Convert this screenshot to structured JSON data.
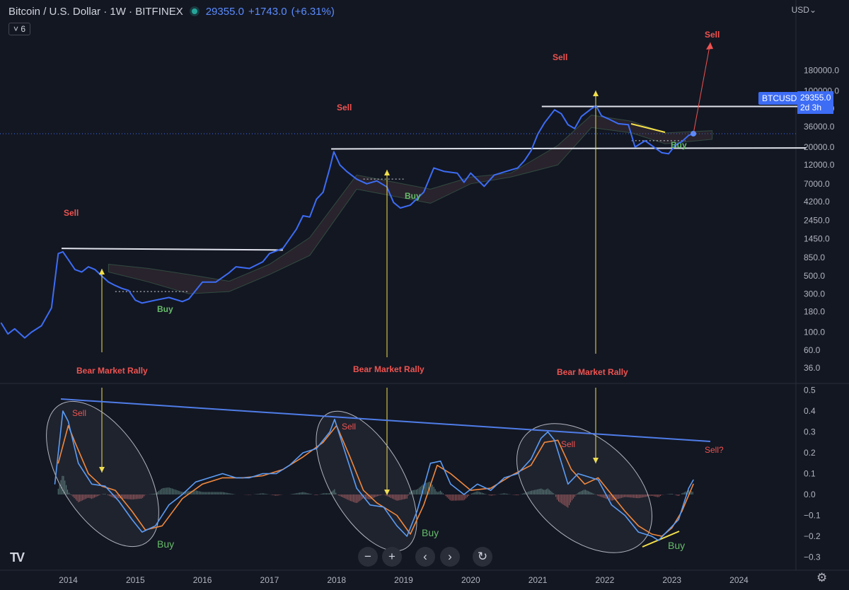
{
  "header": {
    "symbol": "Bitcoin / U.S. Dollar · 1W · BITFINEX",
    "last": "29355.0",
    "change": "+1743.0",
    "change_pct": "(+6.31%)",
    "indicator_count": "6",
    "currency": "USD",
    "currency_caret": "⌄"
  },
  "price_tag": {
    "symbol": "BTCUSD",
    "price": "29355.0",
    "countdown": "2d 3h"
  },
  "colors": {
    "price": "#3d6cf5",
    "macd": "#5b9cf5",
    "signal": "#f0883e",
    "sell": "#ef5350",
    "buy": "#66bb6a",
    "rally": "#ef5350",
    "arrow": "#f3e04a",
    "white_line": "#e0e3eb",
    "trend": "#4f7de8"
  },
  "chart_data": [
    {
      "type": "line",
      "scale": "log",
      "y_ticks": [
        36,
        60,
        100,
        180,
        300,
        500,
        850,
        1450,
        2450,
        4200,
        7000,
        12000,
        20000,
        36000,
        60000,
        100000,
        180000
      ],
      "y_tick_labels": [
        "36.0",
        "60.0",
        "100.0",
        "180.0",
        "300.0",
        "500.0",
        "850.0",
        "1450.0",
        "2450.0",
        "4200.0",
        "7000.0",
        "12000.0",
        "20000.0",
        "36000.0",
        "60000.0",
        "100000.0",
        "180000.0"
      ],
      "x_ticks": [
        2014,
        2015,
        2016,
        2017,
        2018,
        2019,
        2020,
        2021,
        2022,
        2023,
        2024
      ],
      "x_tick_labels": [
        "2014",
        "2015",
        "2016",
        "2017",
        "2018",
        "2019",
        "2020",
        "2021",
        "2022",
        "2023",
        "2024"
      ],
      "series": [
        {
          "x": [
            2013.0,
            2013.1,
            2013.2,
            2013.35,
            2013.45,
            2013.6,
            2013.75,
            2013.85,
            2013.92,
            2014.0,
            2014.1,
            2014.2,
            2014.3,
            2014.4,
            2014.5,
            2014.6,
            2014.7,
            2014.8,
            2014.9,
            2015.0,
            2015.1,
            2015.3,
            2015.5,
            2015.7,
            2015.8,
            2016.0,
            2016.2,
            2016.4,
            2016.5,
            2016.7,
            2016.9,
            2017.0,
            2017.2,
            2017.4,
            2017.5,
            2017.6,
            2017.7,
            2017.8,
            2017.9,
            2017.96,
            2018.05,
            2018.15,
            2018.3,
            2018.45,
            2018.6,
            2018.75,
            2018.85,
            2018.95,
            2019.1,
            2019.3,
            2019.45,
            2019.6,
            2019.8,
            2019.9,
            2020.0,
            2020.2,
            2020.35,
            2020.5,
            2020.7,
            2020.8,
            2020.9,
            2021.0,
            2021.1,
            2021.25,
            2021.35,
            2021.45,
            2021.55,
            2021.65,
            2021.8,
            2021.87,
            2021.95,
            2022.05,
            2022.2,
            2022.35,
            2022.45,
            2022.6,
            2022.75,
            2022.85,
            2022.95,
            2023.05,
            2023.15,
            2023.25,
            2023.32
          ],
          "y": [
            130,
            95,
            110,
            85,
            100,
            120,
            200,
            950,
            1000,
            800,
            600,
            560,
            650,
            600,
            500,
            420,
            380,
            350,
            330,
            250,
            230,
            250,
            270,
            240,
            260,
            420,
            420,
            550,
            650,
            620,
            750,
            950,
            1100,
            1900,
            2800,
            2700,
            4500,
            5500,
            11000,
            17500,
            12000,
            10000,
            8000,
            7000,
            7600,
            6400,
            4100,
            3500,
            3800,
            5500,
            11000,
            10000,
            9500,
            7300,
            9500,
            6500,
            9000,
            9800,
            11000,
            13500,
            18000,
            29000,
            40000,
            58000,
            52000,
            38000,
            34000,
            48000,
            60000,
            65000,
            49000,
            45000,
            39000,
            38000,
            20000,
            24000,
            19500,
            17000,
            16500,
            21000,
            23500,
            28000,
            29355
          ]
        }
      ],
      "annotations": {
        "sell": "Sell",
        "buy": "Buy",
        "rally": "Bear Market Rally"
      }
    },
    {
      "type": "line",
      "name": "oscillator",
      "y_ticks": [
        0.5,
        0.4,
        0.3,
        0.2,
        0.1,
        0.0,
        -0.1,
        -0.2,
        -0.3
      ],
      "y_tick_labels": [
        "0.5",
        "0.4",
        "0.3",
        "0.2",
        "0.1",
        "0.0",
        "−0.1",
        "−0.2",
        "−0.3"
      ],
      "series": [
        {
          "x": [
            2013.8,
            2013.92,
            2014.0,
            2014.15,
            2014.35,
            2014.55,
            2014.75,
            2014.95,
            2015.1,
            2015.3,
            2015.5,
            2015.7,
            2015.9,
            2016.1,
            2016.3,
            2016.5,
            2016.7,
            2016.9,
            2017.1,
            2017.3,
            2017.5,
            2017.7,
            2017.9,
            2017.97,
            2018.1,
            2018.3,
            2018.5,
            2018.7,
            2018.9,
            2019.05,
            2019.2,
            2019.4,
            2019.55,
            2019.7,
            2019.9,
            2020.1,
            2020.3,
            2020.5,
            2020.7,
            2020.9,
            2021.05,
            2021.15,
            2021.25,
            2021.45,
            2021.6,
            2021.8,
            2021.9,
            2022.1,
            2022.3,
            2022.5,
            2022.7,
            2022.8,
            2022.95,
            2023.1,
            2023.25,
            2023.32
          ],
          "y": [
            0.05,
            0.4,
            0.35,
            0.15,
            0.05,
            0.04,
            -0.03,
            -0.12,
            -0.18,
            -0.15,
            -0.05,
            0.0,
            0.06,
            0.08,
            0.1,
            0.08,
            0.08,
            0.1,
            0.1,
            0.14,
            0.2,
            0.22,
            0.3,
            0.36,
            0.23,
            0.03,
            -0.05,
            -0.06,
            -0.15,
            -0.2,
            -0.08,
            0.15,
            0.16,
            0.05,
            0.0,
            0.05,
            0.02,
            0.08,
            0.1,
            0.17,
            0.27,
            0.3,
            0.26,
            0.05,
            0.1,
            0.08,
            0.07,
            -0.05,
            -0.1,
            -0.18,
            -0.2,
            -0.22,
            -0.17,
            -0.12,
            0.03,
            0.07
          ]
        },
        {
          "x": [
            2013.85,
            2014.0,
            2014.1,
            2014.3,
            2014.5,
            2014.7,
            2014.95,
            2015.15,
            2015.4,
            2015.7,
            2016.0,
            2016.3,
            2016.6,
            2016.9,
            2017.2,
            2017.5,
            2017.8,
            2018.0,
            2018.2,
            2018.4,
            2018.6,
            2018.9,
            2019.1,
            2019.3,
            2019.5,
            2019.7,
            2020.0,
            2020.3,
            2020.6,
            2020.9,
            2021.1,
            2021.3,
            2021.5,
            2021.7,
            2021.9,
            2022.1,
            2022.3,
            2022.5,
            2022.7,
            2022.85,
            2023.0,
            2023.15,
            2023.32
          ],
          "y": [
            0.15,
            0.33,
            0.25,
            0.1,
            0.04,
            0.02,
            -0.08,
            -0.17,
            -0.15,
            -0.02,
            0.05,
            0.08,
            0.08,
            0.09,
            0.12,
            0.18,
            0.25,
            0.33,
            0.18,
            0.02,
            -0.04,
            -0.1,
            -0.19,
            -0.05,
            0.14,
            0.1,
            0.02,
            0.03,
            0.09,
            0.14,
            0.25,
            0.26,
            0.12,
            0.05,
            0.08,
            0.0,
            -0.08,
            -0.15,
            -0.19,
            -0.2,
            -0.16,
            -0.08,
            0.05
          ]
        }
      ],
      "annotations": {
        "sell": "Sell",
        "sell_q": "Sell?",
        "buy": "Buy"
      }
    }
  ],
  "controls": {
    "zoom_out": "−",
    "zoom_in": "+",
    "prev": "‹",
    "next": "›",
    "reset": "↻",
    "logo": "TV",
    "settings": "⚙"
  }
}
